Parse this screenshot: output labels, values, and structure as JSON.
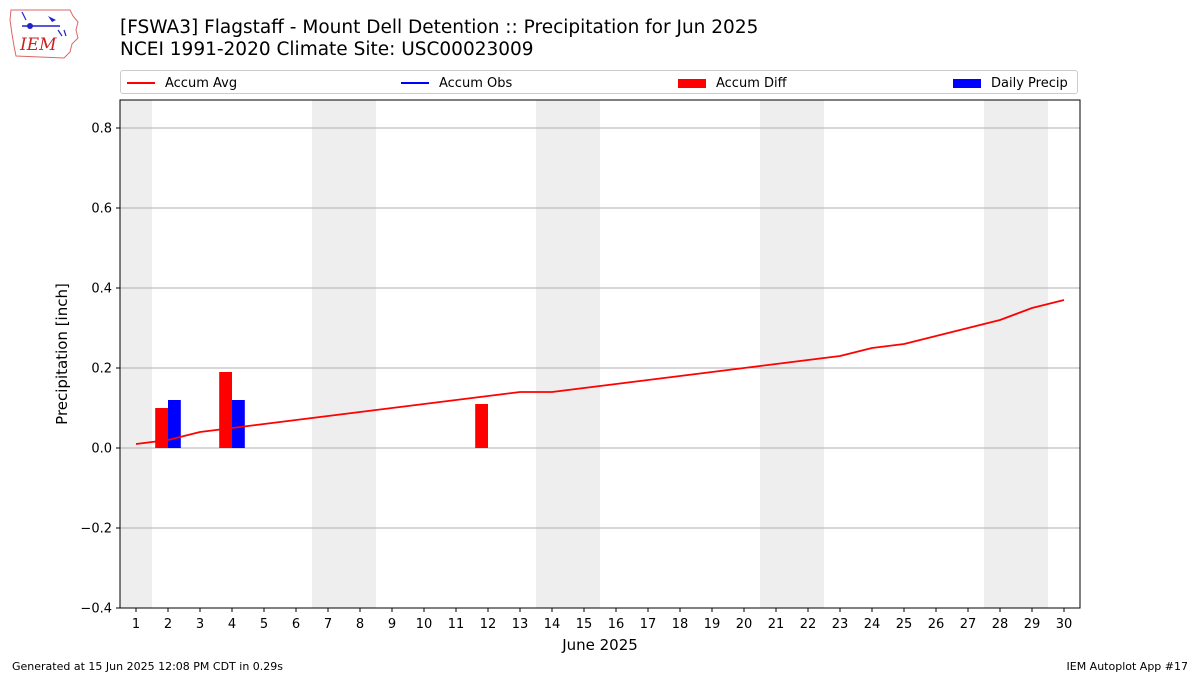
{
  "logo": {
    "text": "IEM",
    "icon": "iowa-state-weather-icon"
  },
  "title_line1": "[FSWA3] Flagstaff - Mount Dell Detention :: Precipitation for Jun 2025",
  "title_line2": "NCEI 1991-2020 Climate Site: USC00023009",
  "footer_left": "Generated at 15 Jun 2025 12:08 PM CDT in 0.29s",
  "footer_right": "IEM Autoplot App #17",
  "colors": {
    "avg": "#ff0000",
    "obs": "#0000ff",
    "diff": "#ff0000",
    "daily": "#0000ff",
    "weekend": "#eeeeee",
    "grid": "#b0b0b0"
  },
  "chart_data": {
    "type": "bar",
    "xlabel": "June 2025",
    "ylabel": "Precipitation [inch]",
    "xlim": [
      0.5,
      30.5
    ],
    "ylim": [
      -0.4,
      0.87
    ],
    "yticks": [
      -0.4,
      -0.2,
      0.0,
      0.2,
      0.4,
      0.6,
      0.8
    ],
    "ytick_labels": [
      "−0.4",
      "−0.2",
      "0.0",
      "0.2",
      "0.4",
      "0.6",
      "0.8"
    ],
    "xticks": [
      1,
      2,
      3,
      4,
      5,
      6,
      7,
      8,
      9,
      10,
      11,
      12,
      13,
      14,
      15,
      16,
      17,
      18,
      19,
      20,
      21,
      22,
      23,
      24,
      25,
      26,
      27,
      28,
      29,
      30
    ],
    "grid": "y",
    "legend_position": "top",
    "weekend_bands": [
      [
        0.5,
        1.5
      ],
      [
        6.5,
        8.5
      ],
      [
        13.5,
        15.5
      ],
      [
        20.5,
        22.5
      ],
      [
        27.5,
        29.5
      ]
    ],
    "series": [
      {
        "name": "Accum Avg",
        "kind": "line",
        "color": "#ff0000",
        "x": [
          1,
          2,
          3,
          4,
          5,
          6,
          7,
          8,
          9,
          10,
          11,
          12,
          13,
          14,
          15,
          16,
          17,
          18,
          19,
          20,
          21,
          22,
          23,
          24,
          25,
          26,
          27,
          28,
          29,
          30
        ],
        "values": [
          0.01,
          0.02,
          0.04,
          0.05,
          0.06,
          0.07,
          0.08,
          0.09,
          0.1,
          0.11,
          0.12,
          0.13,
          0.14,
          0.14,
          0.15,
          0.16,
          0.17,
          0.18,
          0.19,
          0.2,
          0.21,
          0.22,
          0.23,
          0.25,
          0.26,
          0.28,
          0.3,
          0.32,
          0.35,
          0.37
        ]
      },
      {
        "name": "Accum Obs",
        "kind": "line",
        "color": "#0000ff",
        "x": [],
        "values": []
      },
      {
        "name": "Accum Diff",
        "kind": "bar",
        "color": "#ff0000",
        "offset": -0.2,
        "x": [
          2,
          4,
          12
        ],
        "values": [
          0.1,
          0.19,
          0.11
        ]
      },
      {
        "name": "Daily Precip",
        "kind": "bar",
        "color": "#0000ff",
        "offset": 0.2,
        "x": [
          2,
          4
        ],
        "values": [
          0.12,
          0.12
        ]
      }
    ]
  }
}
